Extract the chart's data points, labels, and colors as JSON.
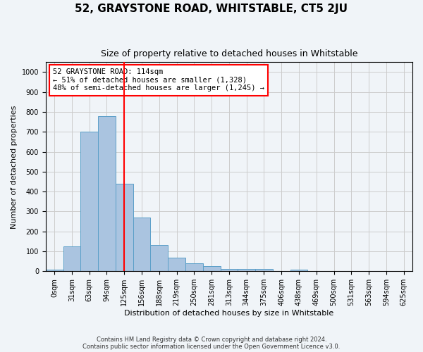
{
  "title": "52, GRAYSTONE ROAD, WHITSTABLE, CT5 2JU",
  "subtitle": "Size of property relative to detached houses in Whitstable",
  "xlabel": "Distribution of detached houses by size in Whitstable",
  "ylabel": "Number of detached properties",
  "footer_line1": "Contains HM Land Registry data © Crown copyright and database right 2024.",
  "footer_line2": "Contains public sector information licensed under the Open Government Licence v3.0.",
  "bin_labels": [
    "0sqm",
    "31sqm",
    "63sqm",
    "94sqm",
    "125sqm",
    "156sqm",
    "188sqm",
    "219sqm",
    "250sqm",
    "281sqm",
    "313sqm",
    "344sqm",
    "375sqm",
    "406sqm",
    "438sqm",
    "469sqm",
    "500sqm",
    "531sqm",
    "563sqm",
    "594sqm",
    "625sqm"
  ],
  "bar_values": [
    8,
    125,
    700,
    780,
    440,
    270,
    133,
    70,
    40,
    25,
    13,
    13,
    13,
    0,
    8,
    0,
    0,
    0,
    0,
    0,
    0
  ],
  "bar_color": "#aac4e0",
  "bar_edge_color": "#5a9fc8",
  "reference_line_x_label": "125sqm",
  "reference_line_color": "red",
  "annotation_text": "52 GRAYSTONE ROAD: 114sqm\n← 51% of detached houses are smaller (1,328)\n48% of semi-detached houses are larger (1,245) →",
  "annotation_box_color": "white",
  "annotation_box_edge_color": "red",
  "ylim": [
    0,
    1050
  ],
  "yticks": [
    0,
    100,
    200,
    300,
    400,
    500,
    600,
    700,
    800,
    900,
    1000
  ],
  "grid_color": "#cccccc",
  "background_color": "#f0f4f8",
  "plot_bg_color": "#f0f4f8",
  "title_fontsize": 11,
  "subtitle_fontsize": 9,
  "ylabel_fontsize": 8,
  "xlabel_fontsize": 8,
  "footer_fontsize": 6,
  "tick_fontsize": 7
}
